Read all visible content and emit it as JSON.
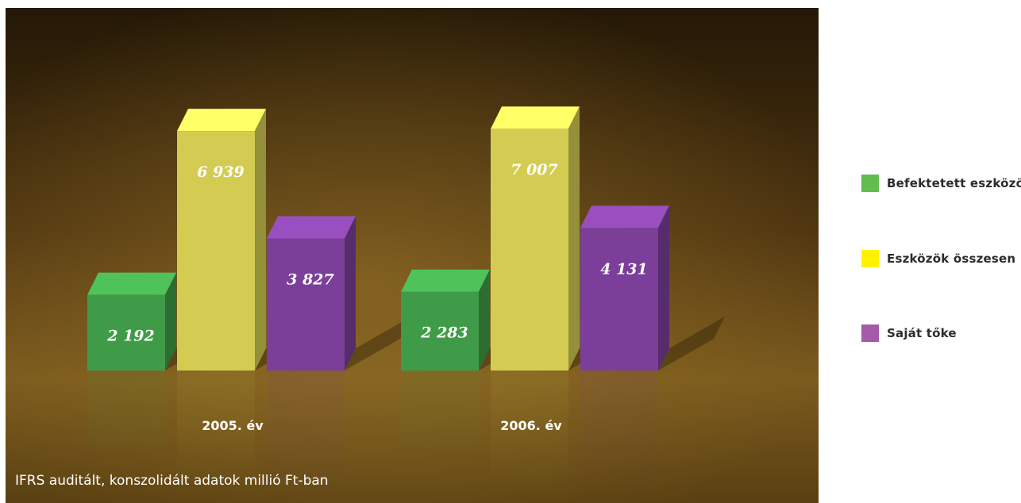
{
  "chart_data": {
    "type": "bar",
    "categories": [
      "2005. év",
      "2006. év"
    ],
    "series": [
      {
        "name": "Befektetett eszközök",
        "values": [
          2192,
          2283
        ],
        "value_labels": [
          "2 192",
          "2 283"
        ],
        "color": "#3f9b47"
      },
      {
        "name": "Eszközök összesen",
        "values": [
          6939,
          7007
        ],
        "value_labels": [
          "6 939",
          "7 007"
        ],
        "color": "#d4cc52"
      },
      {
        "name": "Saját tőke",
        "values": [
          3827,
          4131
        ],
        "value_labels": [
          "3 827",
          "4 131"
        ],
        "color": "#7b3f9a"
      }
    ],
    "note": "IFRS auditált, konszolidált adatok millió Ft-ban",
    "ylim": [
      0,
      7500
    ],
    "legend_position": "right",
    "grid": false
  },
  "legend": {
    "items": [
      {
        "label": "Befektetett eszközök",
        "color": "#63bd4d"
      },
      {
        "label": "Eszközök összesen",
        "color": "#fff200"
      },
      {
        "label": "Saját tőke",
        "color": "#a45ba8"
      }
    ]
  },
  "colors": {
    "background_top": "#2a1c06",
    "background_mid": "#5e3f12",
    "background_floor": "#8a6622",
    "label_text": "#ffffff"
  }
}
